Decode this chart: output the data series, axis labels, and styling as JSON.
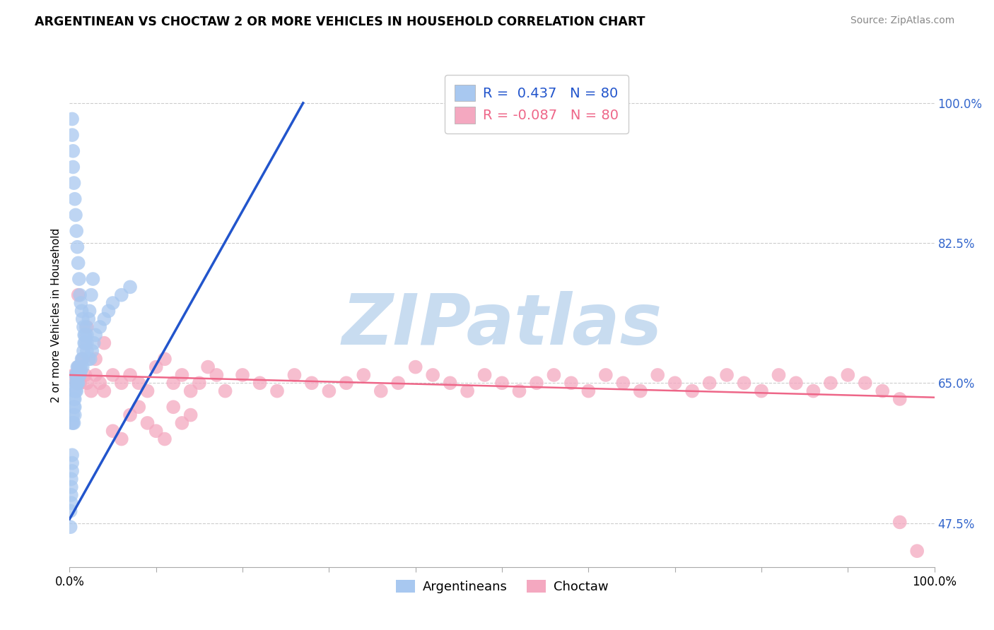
{
  "title": "ARGENTINEAN VS CHOCTAW 2 OR MORE VEHICLES IN HOUSEHOLD CORRELATION CHART",
  "source": "Source: ZipAtlas.com",
  "ylabel": "2 or more Vehicles in Household",
  "xlim": [
    0.0,
    1.0
  ],
  "ylim": [
    0.42,
    1.05
  ],
  "blue_R": 0.437,
  "blue_N": 80,
  "pink_R": -0.087,
  "pink_N": 80,
  "blue_color": "#A8C8F0",
  "pink_color": "#F4A8C0",
  "blue_line_color": "#2255CC",
  "pink_line_color": "#EE6688",
  "legend_blue_label": "Argentineans",
  "legend_pink_label": "Choctaw",
  "watermark": "ZIPatlas",
  "watermark_color": "#C8DCF0",
  "grid_color": "#CCCCCC",
  "ytick_vals": [
    0.475,
    0.65,
    0.825,
    1.0
  ],
  "ytick_labels": [
    "47.5%",
    "65.0%",
    "82.5%",
    "100.0%"
  ],
  "xtick_vals": [
    0.0,
    0.1,
    0.2,
    0.3,
    0.4,
    0.5,
    0.6,
    0.7,
    0.8,
    0.9,
    1.0
  ],
  "blue_x": [
    0.001,
    0.001,
    0.002,
    0.002,
    0.002,
    0.002,
    0.003,
    0.003,
    0.003,
    0.003,
    0.004,
    0.004,
    0.005,
    0.005,
    0.005,
    0.005,
    0.006,
    0.006,
    0.006,
    0.007,
    0.007,
    0.007,
    0.008,
    0.008,
    0.008,
    0.009,
    0.009,
    0.009,
    0.01,
    0.01,
    0.01,
    0.011,
    0.011,
    0.012,
    0.012,
    0.013,
    0.013,
    0.014,
    0.015,
    0.015,
    0.016,
    0.017,
    0.018,
    0.019,
    0.02,
    0.02,
    0.022,
    0.023,
    0.025,
    0.027,
    0.003,
    0.003,
    0.004,
    0.004,
    0.005,
    0.006,
    0.007,
    0.008,
    0.009,
    0.01,
    0.011,
    0.012,
    0.013,
    0.014,
    0.015,
    0.016,
    0.017,
    0.018,
    0.02,
    0.022,
    0.024,
    0.026,
    0.028,
    0.03,
    0.035,
    0.04,
    0.045,
    0.05,
    0.06,
    0.07
  ],
  "blue_y": [
    0.47,
    0.49,
    0.51,
    0.5,
    0.52,
    0.53,
    0.54,
    0.55,
    0.56,
    0.6,
    0.6,
    0.61,
    0.62,
    0.63,
    0.64,
    0.6,
    0.61,
    0.62,
    0.63,
    0.64,
    0.65,
    0.66,
    0.64,
    0.65,
    0.66,
    0.65,
    0.66,
    0.67,
    0.65,
    0.66,
    0.67,
    0.66,
    0.67,
    0.66,
    0.67,
    0.665,
    0.67,
    0.68,
    0.67,
    0.68,
    0.69,
    0.7,
    0.71,
    0.72,
    0.7,
    0.71,
    0.73,
    0.74,
    0.76,
    0.78,
    0.96,
    0.98,
    0.94,
    0.92,
    0.9,
    0.88,
    0.86,
    0.84,
    0.82,
    0.8,
    0.78,
    0.76,
    0.75,
    0.74,
    0.73,
    0.72,
    0.71,
    0.7,
    0.69,
    0.68,
    0.68,
    0.69,
    0.7,
    0.71,
    0.72,
    0.73,
    0.74,
    0.75,
    0.76,
    0.77
  ],
  "pink_x": [
    0.005,
    0.008,
    0.01,
    0.012,
    0.015,
    0.018,
    0.02,
    0.025,
    0.03,
    0.035,
    0.04,
    0.05,
    0.06,
    0.07,
    0.08,
    0.09,
    0.1,
    0.11,
    0.12,
    0.13,
    0.14,
    0.15,
    0.16,
    0.17,
    0.18,
    0.2,
    0.22,
    0.24,
    0.26,
    0.28,
    0.3,
    0.32,
    0.34,
    0.36,
    0.38,
    0.4,
    0.42,
    0.44,
    0.46,
    0.48,
    0.5,
    0.52,
    0.54,
    0.56,
    0.58,
    0.6,
    0.62,
    0.64,
    0.66,
    0.68,
    0.7,
    0.72,
    0.74,
    0.76,
    0.78,
    0.8,
    0.82,
    0.84,
    0.86,
    0.88,
    0.9,
    0.92,
    0.94,
    0.96,
    0.01,
    0.02,
    0.03,
    0.04,
    0.05,
    0.06,
    0.07,
    0.08,
    0.09,
    0.1,
    0.11,
    0.12,
    0.13,
    0.14,
    0.96,
    0.98
  ],
  "pink_y": [
    0.66,
    0.65,
    0.67,
    0.65,
    0.68,
    0.66,
    0.65,
    0.64,
    0.66,
    0.65,
    0.64,
    0.66,
    0.65,
    0.66,
    0.65,
    0.64,
    0.67,
    0.68,
    0.65,
    0.66,
    0.64,
    0.65,
    0.67,
    0.66,
    0.64,
    0.66,
    0.65,
    0.64,
    0.66,
    0.65,
    0.64,
    0.65,
    0.66,
    0.64,
    0.65,
    0.67,
    0.66,
    0.65,
    0.64,
    0.66,
    0.65,
    0.64,
    0.65,
    0.66,
    0.65,
    0.64,
    0.66,
    0.65,
    0.64,
    0.66,
    0.65,
    0.64,
    0.65,
    0.66,
    0.65,
    0.64,
    0.66,
    0.65,
    0.64,
    0.65,
    0.66,
    0.65,
    0.64,
    0.63,
    0.76,
    0.72,
    0.68,
    0.7,
    0.59,
    0.58,
    0.61,
    0.62,
    0.6,
    0.59,
    0.58,
    0.62,
    0.6,
    0.61,
    0.476,
    0.44
  ],
  "blue_trend_x": [
    0.0,
    0.27
  ],
  "blue_trend_y": [
    0.48,
    1.0
  ],
  "pink_trend_x": [
    0.0,
    1.0
  ],
  "pink_trend_y": [
    0.66,
    0.632
  ]
}
